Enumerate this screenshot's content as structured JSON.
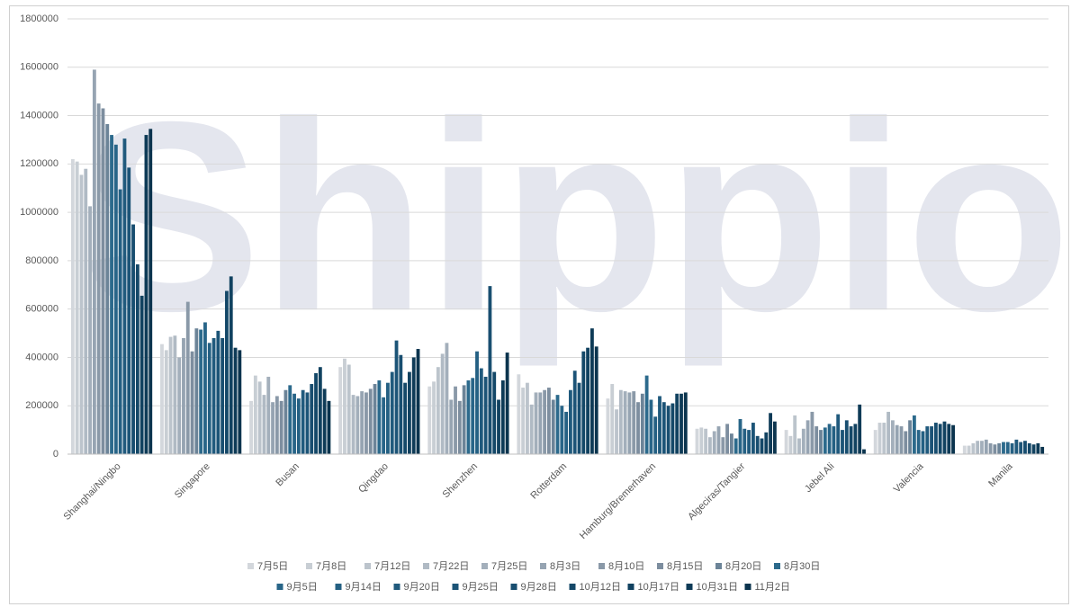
{
  "chart_data": {
    "type": "bar",
    "watermark": "Shippio",
    "categories": [
      "Shanghai/Ningbo",
      "Singapore",
      "Busan",
      "Qingdao",
      "Shenzhen",
      "Rotterdam",
      "Hamburg/Bremerhaven",
      "Algeciras/Tangier",
      "Jebel Ali",
      "Valencia",
      "Manila"
    ],
    "ylim": [
      0,
      1800000
    ],
    "yticks": [
      0,
      200000,
      400000,
      600000,
      800000,
      1000000,
      1200000,
      1400000,
      1600000,
      1800000
    ],
    "grid": true,
    "series": [
      {
        "name": "7月5日",
        "color": "#d3d7dc",
        "values": [
          1220000,
          455000,
          220000,
          360000,
          280000,
          330000,
          230000,
          105000,
          100000,
          100000,
          35000
        ]
      },
      {
        "name": "7月8日",
        "color": "#c8ced4",
        "values": [
          1210000,
          430000,
          325000,
          395000,
          300000,
          275000,
          290000,
          110000,
          75000,
          130000,
          35000
        ]
      },
      {
        "name": "7月12日",
        "color": "#bcc4cc",
        "values": [
          1155000,
          485000,
          300000,
          370000,
          360000,
          295000,
          185000,
          105000,
          160000,
          130000,
          45000
        ]
      },
      {
        "name": "7月22日",
        "color": "#b0bac4",
        "values": [
          1180000,
          490000,
          245000,
          245000,
          415000,
          205000,
          265000,
          70000,
          65000,
          175000,
          55000
        ]
      },
      {
        "name": "7月25日",
        "color": "#a3afbb",
        "values": [
          1025000,
          400000,
          320000,
          240000,
          460000,
          255000,
          260000,
          95000,
          105000,
          140000,
          55000
        ]
      },
      {
        "name": "8月3日",
        "color": "#96a4b2",
        "values": [
          1590000,
          480000,
          215000,
          260000,
          225000,
          255000,
          255000,
          115000,
          140000,
          120000,
          60000
        ]
      },
      {
        "name": "8月10日",
        "color": "#8a99a8",
        "values": [
          1450000,
          630000,
          240000,
          255000,
          280000,
          265000,
          260000,
          70000,
          175000,
          115000,
          45000
        ]
      },
      {
        "name": "8月15日",
        "color": "#7d8e9f",
        "values": [
          1430000,
          425000,
          220000,
          270000,
          220000,
          275000,
          215000,
          125000,
          115000,
          95000,
          40000
        ]
      },
      {
        "name": "8月20日",
        "color": "#6c8498",
        "values": [
          1365000,
          520000,
          265000,
          290000,
          285000,
          225000,
          250000,
          85000,
          100000,
          140000,
          45000
        ]
      },
      {
        "name": "8月30日",
        "color": "#2c6a8c",
        "values": [
          1320000,
          515000,
          285000,
          305000,
          305000,
          245000,
          325000,
          65000,
          110000,
          160000,
          50000
        ]
      },
      {
        "name": "9月5日",
        "color": "#286588",
        "values": [
          1280000,
          545000,
          250000,
          235000,
          315000,
          200000,
          225000,
          145000,
          125000,
          100000,
          50000
        ]
      },
      {
        "name": "9月14日",
        "color": "#246083",
        "values": [
          1095000,
          460000,
          230000,
          295000,
          425000,
          175000,
          155000,
          105000,
          115000,
          95000,
          45000
        ]
      },
      {
        "name": "9月20日",
        "color": "#205a7d",
        "values": [
          1305000,
          480000,
          265000,
          340000,
          355000,
          265000,
          240000,
          100000,
          165000,
          115000,
          60000
        ]
      },
      {
        "name": "9月25日",
        "color": "#1c5477",
        "values": [
          1185000,
          510000,
          255000,
          470000,
          320000,
          345000,
          215000,
          130000,
          100000,
          115000,
          50000
        ]
      },
      {
        "name": "9月28日",
        "color": "#184e70",
        "values": [
          950000,
          480000,
          290000,
          410000,
          695000,
          295000,
          200000,
          75000,
          140000,
          130000,
          55000
        ]
      },
      {
        "name": "10月12日",
        "color": "#144868",
        "values": [
          785000,
          675000,
          335000,
          295000,
          340000,
          425000,
          210000,
          65000,
          115000,
          125000,
          45000
        ]
      },
      {
        "name": "10月17日",
        "color": "#114260",
        "values": [
          655000,
          735000,
          360000,
          340000,
          225000,
          440000,
          250000,
          90000,
          125000,
          135000,
          40000
        ]
      },
      {
        "name": "10月31日",
        "color": "#0e3b57",
        "values": [
          1320000,
          440000,
          270000,
          400000,
          305000,
          520000,
          250000,
          170000,
          205000,
          125000,
          45000
        ]
      },
      {
        "name": "11月2日",
        "color": "#0b344e",
        "values": [
          1345000,
          430000,
          220000,
          435000,
          420000,
          445000,
          255000,
          135000,
          20000,
          120000,
          30000
        ]
      }
    ]
  }
}
